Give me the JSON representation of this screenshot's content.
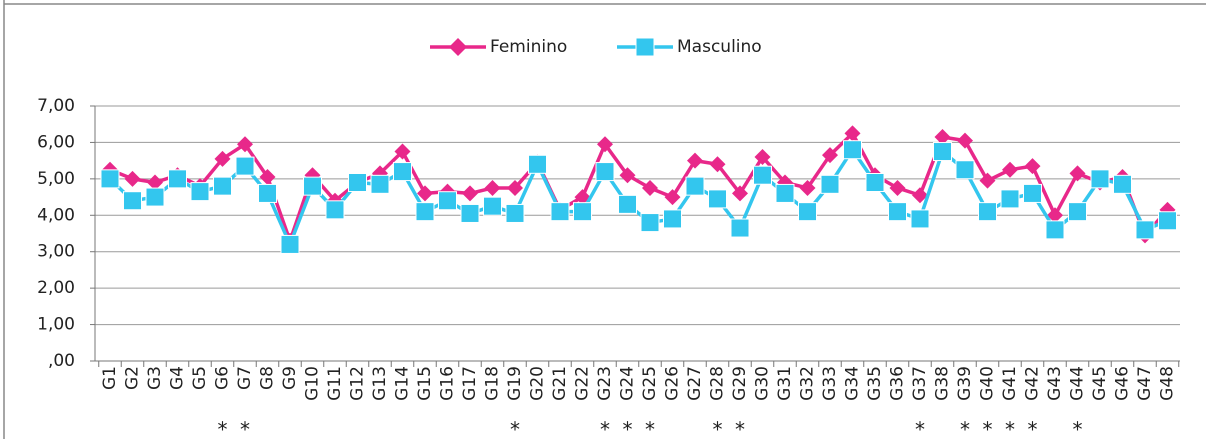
{
  "chart_data": {
    "type": "line",
    "categories": [
      "G1",
      "G2",
      "G3",
      "G4",
      "G5",
      "G6",
      "G7",
      "G8",
      "G9",
      "G10",
      "G11",
      "G12",
      "G13",
      "G14",
      "G15",
      "G16",
      "G17",
      "G18",
      "G19",
      "G20",
      "G21",
      "G22",
      "G23",
      "G24",
      "G25",
      "G26",
      "G27",
      "G28",
      "G29",
      "G30",
      "G31",
      "G32",
      "G33",
      "G34",
      "G35",
      "G36",
      "G37",
      "G38",
      "G39",
      "G40",
      "G41",
      "G42",
      "G43",
      "G44",
      "G45",
      "G46",
      "G47",
      "G48"
    ],
    "category_notes": [
      null,
      null,
      null,
      null,
      null,
      "*",
      "*",
      null,
      null,
      null,
      null,
      null,
      null,
      null,
      null,
      null,
      null,
      null,
      "*",
      null,
      null,
      null,
      "*",
      "*",
      "*",
      null,
      null,
      "*",
      "*",
      null,
      null,
      null,
      null,
      null,
      null,
      null,
      "*",
      null,
      "*",
      "*",
      "*",
      "*",
      null,
      "*",
      null,
      null,
      null,
      null
    ],
    "series": [
      {
        "name": "Feminino",
        "color": "#e8288a",
        "marker": "diamond",
        "values": [
          5.25,
          5.0,
          4.9,
          5.1,
          4.8,
          5.55,
          5.95,
          5.05,
          3.3,
          5.1,
          4.4,
          4.9,
          5.15,
          5.75,
          4.6,
          4.65,
          4.6,
          4.75,
          4.75,
          5.45,
          4.15,
          4.5,
          5.95,
          5.1,
          4.75,
          4.5,
          5.5,
          5.4,
          4.6,
          5.6,
          4.9,
          4.75,
          5.65,
          6.25,
          5.1,
          4.75,
          4.55,
          6.15,
          6.05,
          4.95,
          5.25,
          5.35,
          4.0,
          5.15,
          4.9,
          5.05,
          3.45,
          4.15
        ]
      },
      {
        "name": "Masculino",
        "color": "#33c6ee",
        "marker": "square",
        "values": [
          5.0,
          4.4,
          4.5,
          5.0,
          4.65,
          4.8,
          5.35,
          4.6,
          3.2,
          4.8,
          4.15,
          4.9,
          4.85,
          5.2,
          4.1,
          4.4,
          4.05,
          4.25,
          4.05,
          5.4,
          4.1,
          4.1,
          5.2,
          4.3,
          3.8,
          3.9,
          4.8,
          4.45,
          3.65,
          5.1,
          4.6,
          4.1,
          4.85,
          5.8,
          4.9,
          4.1,
          3.9,
          5.75,
          5.25,
          4.1,
          4.45,
          4.6,
          3.6,
          4.1,
          5.0,
          4.85,
          3.6,
          3.85
        ]
      }
    ],
    "ylim": [
      0,
      7
    ],
    "yticks": [
      {
        "value": 0,
        "label": ",00"
      },
      {
        "value": 1,
        "label": "1,00"
      },
      {
        "value": 2,
        "label": "2,00"
      },
      {
        "value": 3,
        "label": "3,00"
      },
      {
        "value": 4,
        "label": "4,00"
      },
      {
        "value": 5,
        "label": "5,00"
      },
      {
        "value": 6,
        "label": "6,00"
      },
      {
        "value": 7,
        "label": "7,00"
      }
    ],
    "grid": true,
    "legend": "top"
  }
}
